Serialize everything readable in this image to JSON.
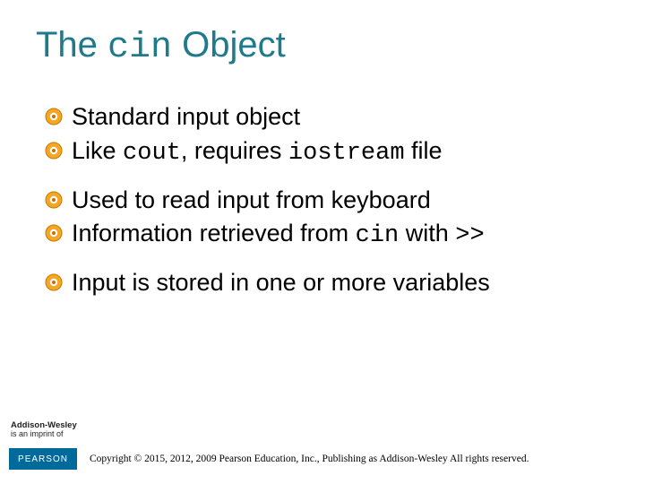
{
  "title": {
    "part1": "The ",
    "code": "cin",
    "part2": " Object",
    "color": "#1f7a8c",
    "fontsize": 40
  },
  "bullet_style": {
    "outer_fill": "#f5a623",
    "outer_stroke": "#c47a00",
    "inner_fill": "#ffffff",
    "dot_fill": "#d06a00"
  },
  "body": {
    "fontsize": 27,
    "color": "#000000"
  },
  "groups": [
    {
      "items": [
        {
          "segments": [
            {
              "t": "Standard input object",
              "mono": false
            }
          ]
        },
        {
          "segments": [
            {
              "t": "Like ",
              "mono": false
            },
            {
              "t": "cout",
              "mono": true
            },
            {
              "t": ", requires ",
              "mono": false
            },
            {
              "t": "iostream",
              "mono": true
            },
            {
              "t": " file",
              "mono": false
            }
          ]
        }
      ]
    },
    {
      "items": [
        {
          "segments": [
            {
              "t": "Used to read input from keyboard",
              "mono": false
            }
          ]
        },
        {
          "segments": [
            {
              "t": "Information retrieved from ",
              "mono": false
            },
            {
              "t": "cin",
              "mono": true
            },
            {
              "t": " with ",
              "mono": false
            },
            {
              "t": ">>",
              "mono": true
            }
          ]
        }
      ]
    },
    {
      "items": [
        {
          "segments": [
            {
              "t": "Input is stored in one or more variables",
              "mono": false
            }
          ]
        }
      ]
    }
  ],
  "footer": {
    "imprint_line1": "Addison-Wesley",
    "imprint_line2": "is an imprint of",
    "pearson": "PEARSON",
    "copyright": "Copyright © 2015, 2012, 2009 Pearson Education, Inc., Publishing as Addison-Wesley All rights reserved."
  }
}
